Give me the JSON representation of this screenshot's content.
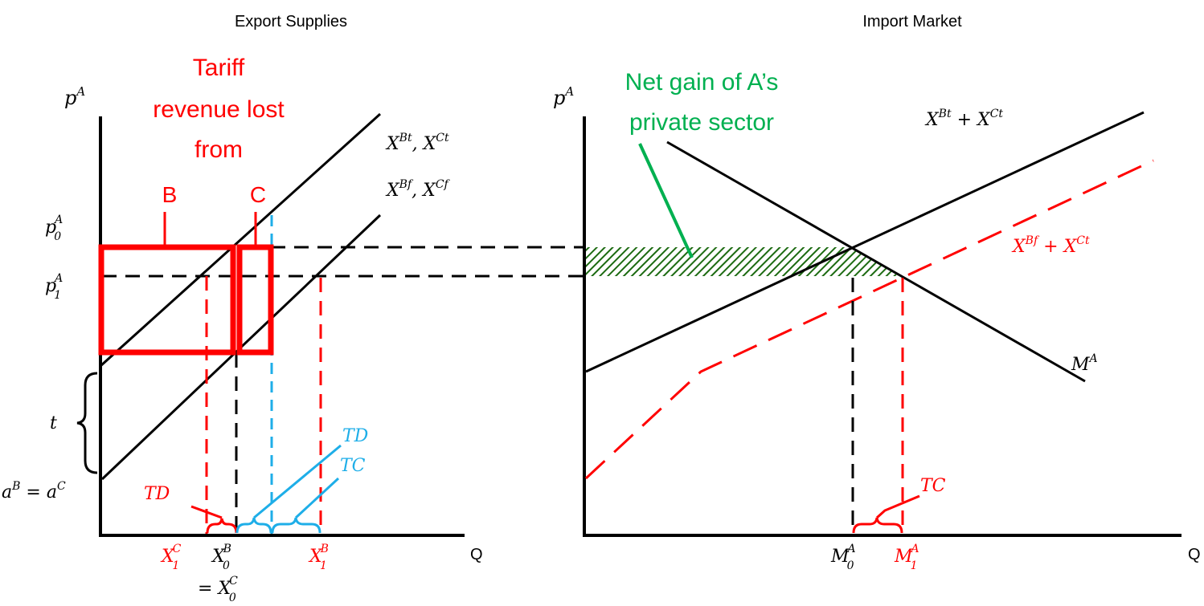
{
  "left_panel": {
    "title": "Export Supplies",
    "y_axis_label": "p",
    "y_axis_sup": "A",
    "x_axis_label": "Q",
    "price_labels": [
      {
        "base": "p",
        "sup": "A",
        "sub": "0"
      },
      {
        "base": "p",
        "sup": "A",
        "sub": "1"
      }
    ],
    "tariff_label": "t",
    "intercept_label": "a",
    "intercept_sup_1": "B",
    "intercept_eq": " = a",
    "intercept_sup_2": "C",
    "curve_top": {
      "a": "X",
      "a_sup": "Bt",
      "sep": ", ",
      "b": "X",
      "b_sup": "Ct"
    },
    "curve_bottom": {
      "a": "X",
      "a_sup": "Bf",
      "sep": ", ",
      "b": "X",
      "b_sup": "Cf"
    },
    "lost_revenue": [
      "Tariff",
      "revenue lost",
      "from"
    ],
    "box_b_label": "B",
    "box_c_label": "C",
    "td_blue": "TD",
    "tc_blue": "TC",
    "td_red": "TD",
    "x_labels": {
      "x1c": {
        "base": "X",
        "sup": "C",
        "sub": "1"
      },
      "x0b": {
        "base": "X",
        "sup": "B",
        "sub": "0"
      },
      "x0c_prefix": "= ",
      "x0c": {
        "base": "X",
        "sup": "C",
        "sub": "0"
      },
      "x1b": {
        "base": "X",
        "sup": "B",
        "sub": "1"
      }
    }
  },
  "right_panel": {
    "title": "Import Market",
    "y_axis_label": "p",
    "y_axis_sup": "A",
    "x_axis_label": "Q",
    "net_gain": [
      "Net gain of A’s",
      "private sector"
    ],
    "supply_top": {
      "a": "X",
      "a_sup": "Bt",
      "op": " + ",
      "b": "X",
      "b_sup": "Ct"
    },
    "supply_red": {
      "a": "X",
      "a_sup": "Bf",
      "op": " + ",
      "b": "X",
      "b_sup": "Ct"
    },
    "demand": {
      "base": "M",
      "sup": "A"
    },
    "tc_label": "TC",
    "m0": {
      "base": "M",
      "sup": "A",
      "sub": "0"
    },
    "m1": {
      "base": "M",
      "sup": "A",
      "sub": "1"
    }
  },
  "colors": {
    "black": "#000000",
    "red": "#ff0000",
    "blue": "#1eaee8",
    "green": "#00b050",
    "hatch": "#1d6b12"
  }
}
